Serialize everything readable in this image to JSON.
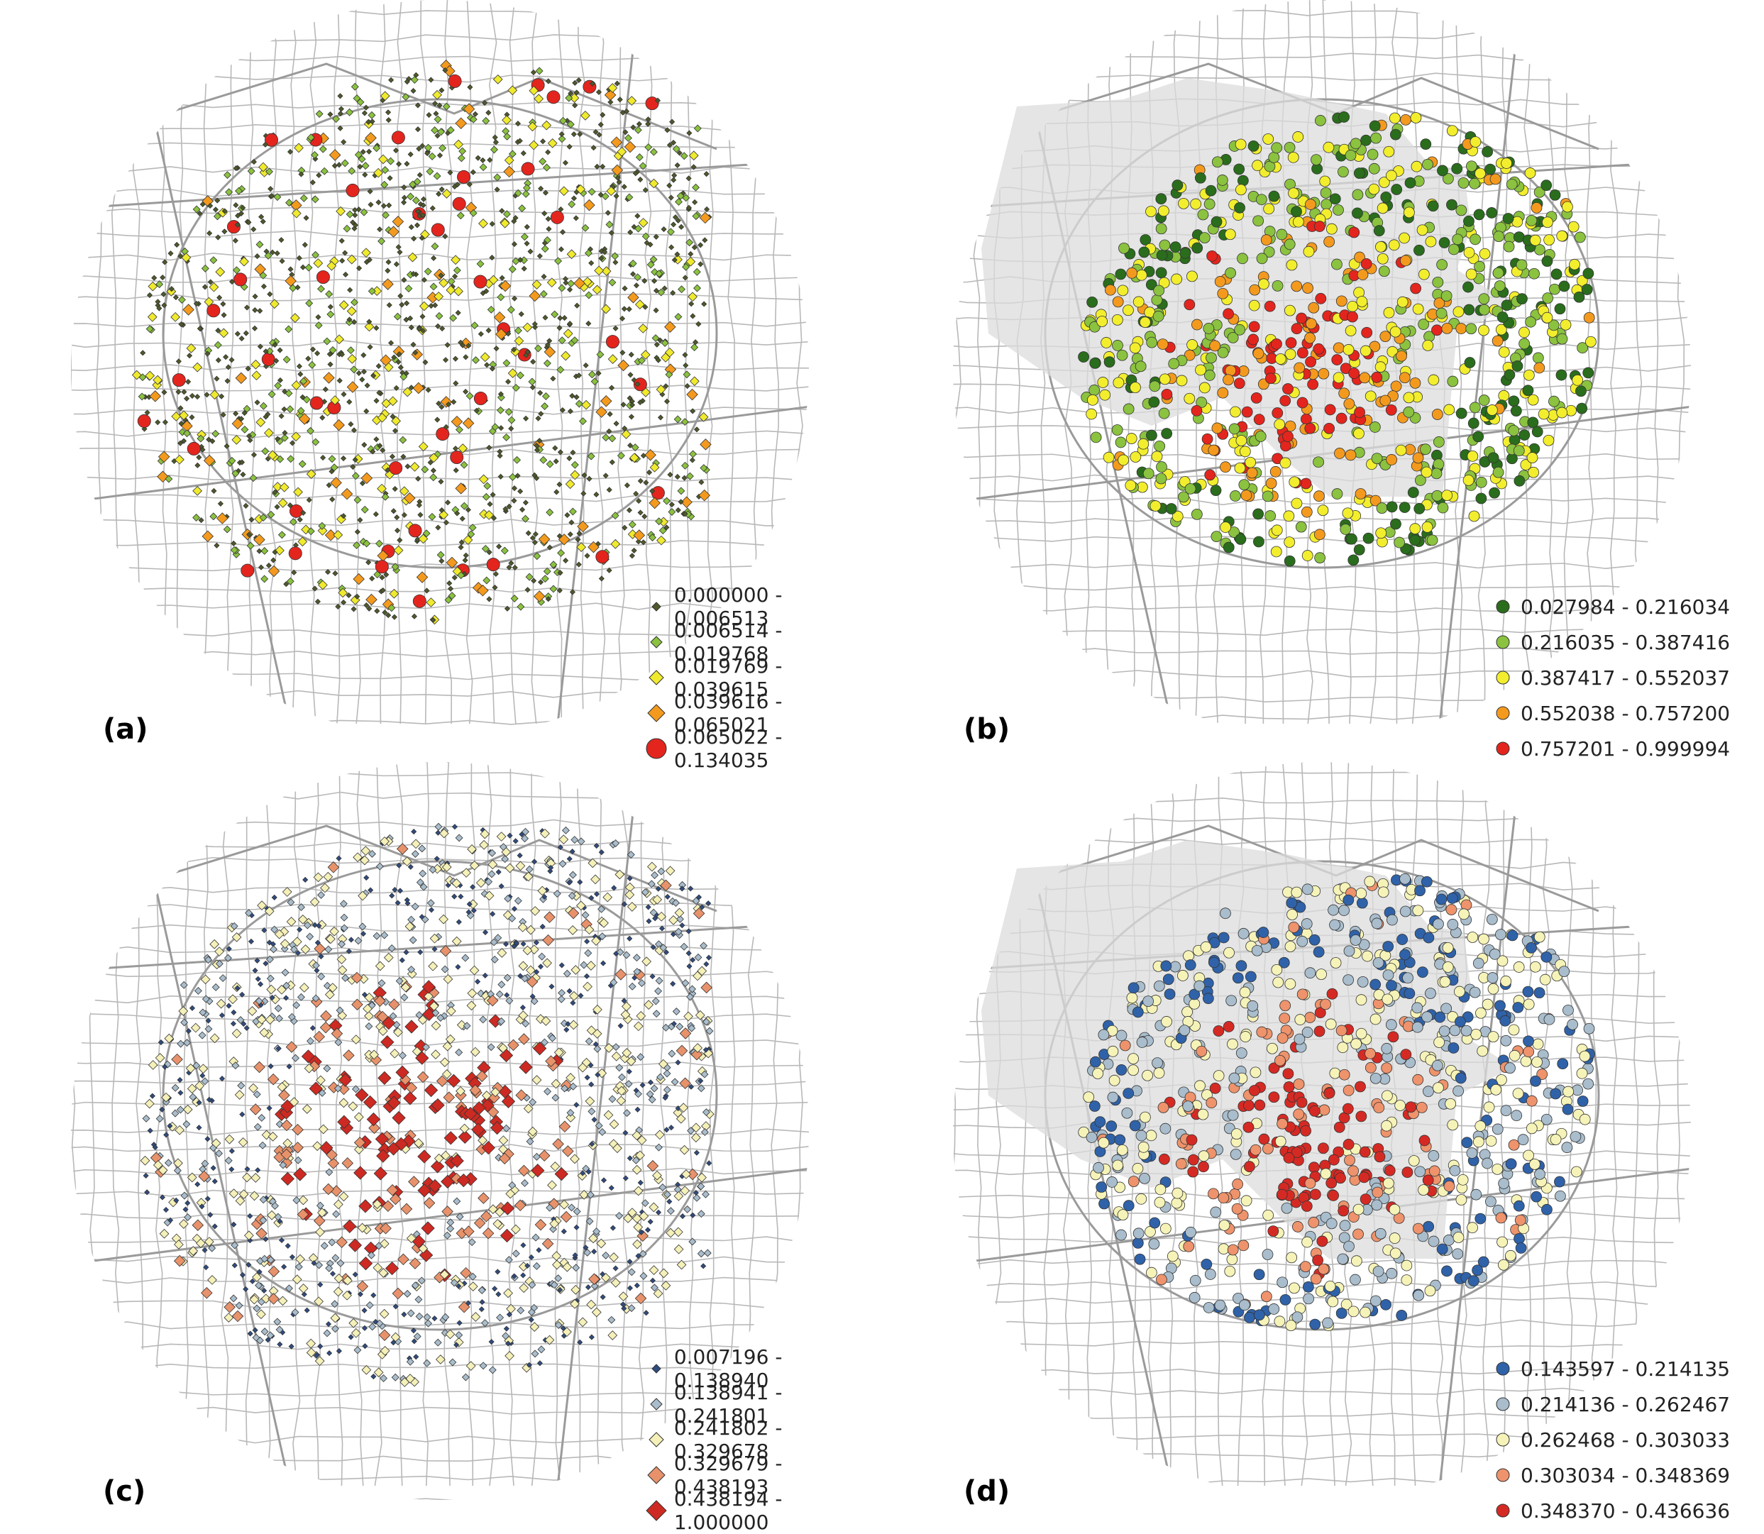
{
  "panels": [
    {
      "label": "(a)",
      "color_scheme": "green-yellow-red",
      "region_fill": false,
      "legend": [
        {
          "range": "0.000000 - 0.006513",
          "color": "#4e5a2a",
          "symbol": "diamond"
        },
        {
          "range": "0.006514 - 0.019768",
          "color": "#8bc23f",
          "symbol": "diamond"
        },
        {
          "range": "0.019769 - 0.039615",
          "color": "#f0ea2f",
          "symbol": "diamond"
        },
        {
          "range": "0.039616 - 0.065021",
          "color": "#f39a1e",
          "symbol": "diamond"
        },
        {
          "range": "0.065022 - 0.134035",
          "color": "#e3251e",
          "symbol": "circle"
        }
      ]
    },
    {
      "label": "(b)",
      "color_scheme": "green-yellow-red",
      "region_fill": true,
      "legend": [
        {
          "range": "0.027984 - 0.216034",
          "color": "#2a6d1c",
          "symbol": "circle"
        },
        {
          "range": "0.216035 - 0.387416",
          "color": "#8bc23f",
          "symbol": "circle"
        },
        {
          "range": "0.387417 - 0.552037",
          "color": "#f2ee2e",
          "symbol": "circle"
        },
        {
          "range": "0.552038 - 0.757200",
          "color": "#f39a1e",
          "symbol": "circle"
        },
        {
          "range": "0.757201 - 0.999994",
          "color": "#e3251e",
          "symbol": "circle"
        }
      ]
    },
    {
      "label": "(c)",
      "color_scheme": "blue-cream-red",
      "region_fill": false,
      "legend": [
        {
          "range": "0.007196 - 0.138940",
          "color": "#2f4c82",
          "symbol": "diamond"
        },
        {
          "range": "0.138941 - 0.241801",
          "color": "#a9bdcc",
          "symbol": "diamond"
        },
        {
          "range": "0.241802 - 0.329678",
          "color": "#f4f0b8",
          "symbol": "diamond"
        },
        {
          "range": "0.329679 - 0.438193",
          "color": "#e8926b",
          "symbol": "diamond"
        },
        {
          "range": "0.438194 - 1.000000",
          "color": "#cc2a22",
          "symbol": "diamond"
        }
      ]
    },
    {
      "label": "(d)",
      "color_scheme": "blue-cream-red",
      "region_fill": true,
      "legend": [
        {
          "range": "0.143597 - 0.214135",
          "color": "#2f62a8",
          "symbol": "circle"
        },
        {
          "range": "0.214136 - 0.262467",
          "color": "#a9bdcc",
          "symbol": "circle"
        },
        {
          "range": "0.262468 - 0.303033",
          "color": "#f6f3b8",
          "symbol": "circle"
        },
        {
          "range": "0.303034 - 0.348369",
          "color": "#ee936c",
          "symbol": "circle"
        },
        {
          "range": "0.348370 - 0.436636",
          "color": "#d52a24",
          "symbol": "circle"
        }
      ]
    }
  ]
}
